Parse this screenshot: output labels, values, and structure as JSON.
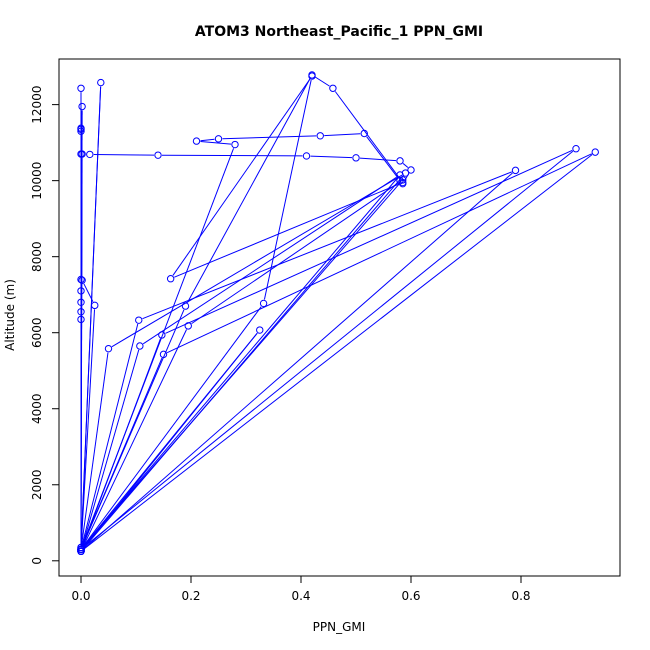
{
  "chart_data": {
    "type": "line",
    "title": "ATOM3 Northeast_Pacific_1 PPN_GMI",
    "xlabel": "PPN_GMI",
    "ylabel": "Altitude (m)",
    "xlim": [
      -0.04,
      0.98
    ],
    "ylim": [
      -400,
      13200
    ],
    "x_ticks": [
      0,
      0.2,
      0.4,
      0.6,
      0.8
    ],
    "x_tick_labels": [
      "0.0",
      "0.2",
      "0.4",
      "0.6",
      "0.8"
    ],
    "y_ticks": [
      0,
      2000,
      4000,
      6000,
      8000,
      10000,
      12000
    ],
    "y_tick_labels": [
      "0",
      "2000",
      "4000",
      "6000",
      "8000",
      "10000",
      "12000"
    ],
    "grid": false,
    "legend": "none",
    "marker": "open-circle",
    "color": "#0000ff",
    "series": [
      {
        "points": [
          [
            0.0,
            250
          ],
          [
            0.0,
            12430
          ],
          [
            0.0,
            300
          ],
          [
            0.0,
            11350
          ],
          [
            0.0,
            350
          ],
          [
            0.002,
            11950
          ],
          [
            0.0,
            250
          ],
          [
            0.036,
            12580
          ],
          [
            0.0,
            300
          ],
          [
            0.0,
            11300
          ],
          [
            0.0,
            250
          ],
          [
            0.0,
            11380
          ],
          [
            0.0,
            300
          ],
          [
            0.002,
            10700
          ],
          [
            0.016,
            10690
          ],
          [
            0.14,
            10670
          ],
          [
            0.41,
            10650
          ],
          [
            0.5,
            10600
          ],
          [
            0.58,
            10520
          ],
          [
            0.6,
            10280
          ],
          [
            0.585,
            9920
          ],
          [
            0.58,
            10000
          ],
          [
            0.515,
            11240
          ],
          [
            0.435,
            11180
          ],
          [
            0.25,
            11100
          ],
          [
            0.21,
            11040
          ],
          [
            0.28,
            10950
          ],
          [
            0.0,
            300
          ],
          [
            0.0,
            10700
          ],
          [
            0.0,
            350
          ],
          [
            0.0,
            7400
          ],
          [
            0.0,
            6550
          ],
          [
            0.0,
            6350
          ],
          [
            0.0,
            6800
          ],
          [
            0.0,
            7100
          ],
          [
            0.002,
            7380
          ],
          [
            0.025,
            6720
          ],
          [
            0.0,
            300
          ],
          [
            0.05,
            5580
          ],
          [
            0.59,
            10200
          ],
          [
            0.0,
            250
          ],
          [
            0.107,
            5650
          ],
          [
            0.58,
            10150
          ],
          [
            0.0,
            300
          ],
          [
            0.105,
            6330
          ],
          [
            0.79,
            10270
          ],
          [
            0.0,
            250
          ],
          [
            0.147,
            5940
          ],
          [
            0.9,
            10840
          ],
          [
            0.0,
            300
          ],
          [
            0.15,
            5430
          ],
          [
            0.935,
            10750
          ],
          [
            0.0,
            250
          ],
          [
            0.195,
            6180
          ],
          [
            0.585,
            10020
          ],
          [
            0.0,
            300
          ],
          [
            0.19,
            6700
          ],
          [
            0.42,
            12780
          ],
          [
            0.458,
            12430
          ],
          [
            0.585,
            9950
          ],
          [
            0.163,
            7420
          ],
          [
            0.42,
            12750
          ],
          [
            0.332,
            6770
          ],
          [
            0.0,
            300
          ],
          [
            0.325,
            6070
          ],
          [
            0.0,
            250
          ]
        ]
      }
    ]
  }
}
